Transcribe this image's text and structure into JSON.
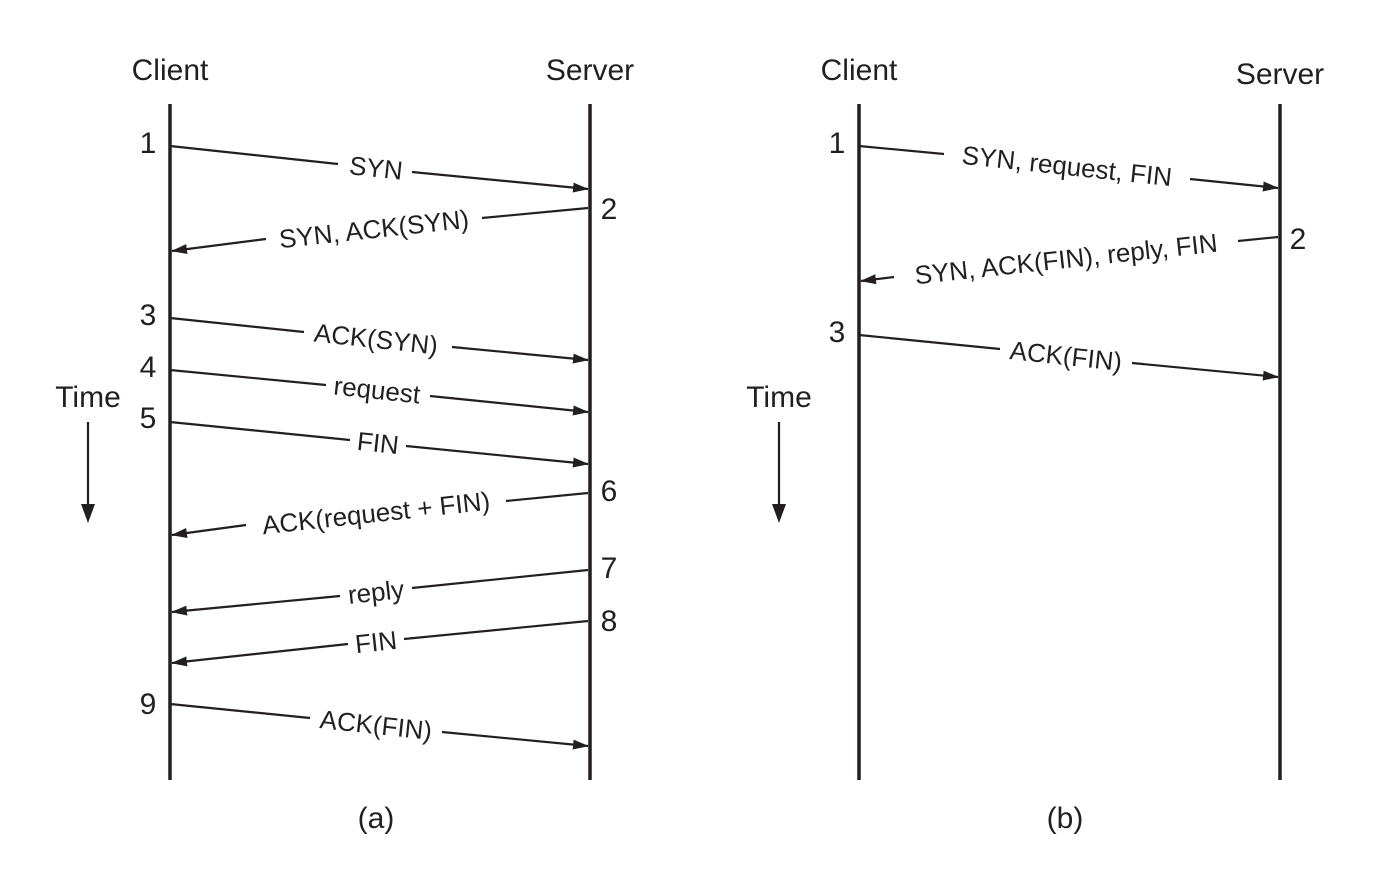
{
  "panel_a": {
    "client_label": "Client",
    "server_label": "Server",
    "time_label": "Time",
    "caption": "(a)",
    "steps": [
      "1",
      "2",
      "3",
      "4",
      "5",
      "6",
      "7",
      "8",
      "9"
    ],
    "messages": [
      "SYN",
      "SYN, ACK(SYN)",
      "ACK(SYN)",
      "request",
      "FIN",
      "ACK(request + FIN)",
      "reply",
      "FIN",
      "ACK(FIN)"
    ]
  },
  "panel_b": {
    "client_label": "Client",
    "server_label": "Server",
    "time_label": "Time",
    "caption": "(b)",
    "steps": [
      "1",
      "2",
      "3"
    ],
    "messages": [
      "SYN, request, FIN",
      "SYN, ACK(FIN), reply, FIN",
      "ACK(FIN)"
    ]
  },
  "colors": {
    "ink": "#231f20",
    "background": "#ffffff"
  }
}
